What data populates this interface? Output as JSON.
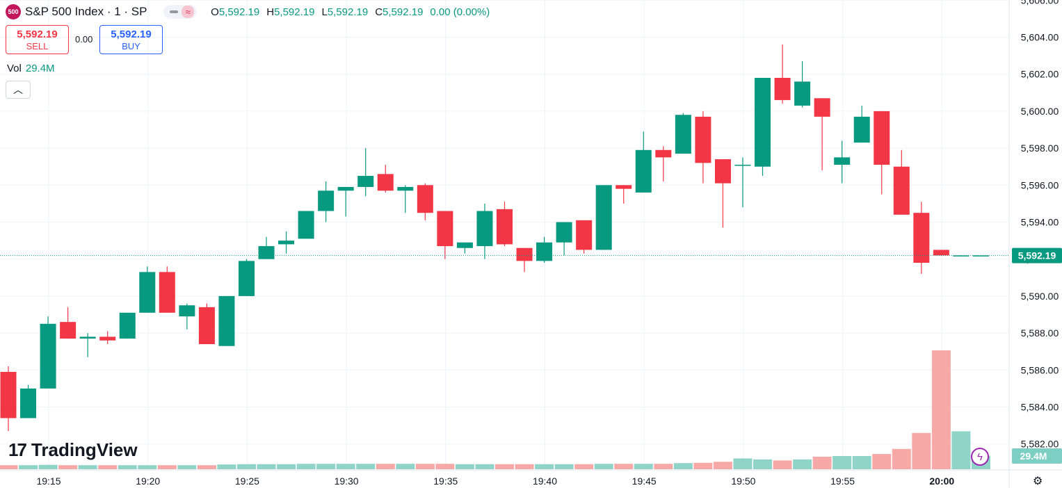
{
  "header": {
    "symbol_badge": "500",
    "title": "S&P 500 Index · 1 · SP",
    "ohlc": [
      {
        "key": "O",
        "value": "5,592.19"
      },
      {
        "key": "H",
        "value": "5,592.19"
      },
      {
        "key": "L",
        "value": "5,592.19"
      },
      {
        "key": "C",
        "value": "5,592.19"
      }
    ],
    "change": "0.00 (0.00%)"
  },
  "trade": {
    "sell_price": "5,592.19",
    "sell_label": "SELL",
    "spread": "0.00",
    "buy_price": "5,592.19",
    "buy_label": "BUY"
  },
  "volume_legend": {
    "label": "Vol",
    "value": "29.4M"
  },
  "collapse_icon": "chevron-up-icon",
  "logo_text": "TradingView",
  "colors": {
    "up": "#089981",
    "down": "#f23645",
    "vol_up": "#8fd3c9",
    "vol_down": "#f7a9a7",
    "price_tag": "#089981"
  },
  "chart_data": {
    "type": "candlestick",
    "x_ticks": [
      "19:15",
      "19:20",
      "19:25",
      "19:30",
      "19:35",
      "19:40",
      "19:45",
      "19:50",
      "19:55",
      "20:00"
    ],
    "y_ticks": [
      "5,582.00",
      "5,584.00",
      "5,586.00",
      "5,588.00",
      "5,590.00",
      "5,592.00",
      "5,594.00",
      "5,596.00",
      "5,598.00",
      "5,600.00",
      "5,602.00",
      "5,604.00",
      "5,606.00"
    ],
    "ylim": [
      5581,
      5606
    ],
    "last_price": 5592.19,
    "last_price_label": "5,592.19",
    "volume_label": "29.4M",
    "candles": [
      {
        "o": 5585.9,
        "h": 5586.2,
        "l": 5582.7,
        "c": 5583.4
      },
      {
        "o": 5583.4,
        "h": 5585.2,
        "l": 5583.4,
        "c": 5585.0
      },
      {
        "o": 5585.0,
        "h": 5588.9,
        "l": 5585.0,
        "c": 5588.5
      },
      {
        "o": 5588.6,
        "h": 5589.4,
        "l": 5587.7,
        "c": 5587.7
      },
      {
        "o": 5587.7,
        "h": 5588.0,
        "l": 5586.7,
        "c": 5587.8
      },
      {
        "o": 5587.8,
        "h": 5588.1,
        "l": 5587.4,
        "c": 5587.6
      },
      {
        "o": 5587.7,
        "h": 5589.1,
        "l": 5587.7,
        "c": 5589.1
      },
      {
        "o": 5589.1,
        "h": 5591.6,
        "l": 5589.1,
        "c": 5591.3
      },
      {
        "o": 5591.3,
        "h": 5591.6,
        "l": 5589.1,
        "c": 5589.1
      },
      {
        "o": 5588.9,
        "h": 5589.6,
        "l": 5588.2,
        "c": 5589.5
      },
      {
        "o": 5589.4,
        "h": 5589.6,
        "l": 5587.4,
        "c": 5587.4
      },
      {
        "o": 5587.3,
        "h": 5590.0,
        "l": 5587.3,
        "c": 5590.0
      },
      {
        "o": 5590.0,
        "h": 5592.0,
        "l": 5590.0,
        "c": 5591.9
      },
      {
        "o": 5592.0,
        "h": 5593.2,
        "l": 5592.0,
        "c": 5592.7
      },
      {
        "o": 5592.8,
        "h": 5593.5,
        "l": 5592.3,
        "c": 5593.0
      },
      {
        "o": 5593.1,
        "h": 5594.6,
        "l": 5593.1,
        "c": 5594.6
      },
      {
        "o": 5594.6,
        "h": 5596.2,
        "l": 5594.0,
        "c": 5595.7
      },
      {
        "o": 5595.7,
        "h": 5595.9,
        "l": 5594.3,
        "c": 5595.9
      },
      {
        "o": 5595.9,
        "h": 5598.0,
        "l": 5595.4,
        "c": 5596.5
      },
      {
        "o": 5596.6,
        "h": 5597.1,
        "l": 5595.6,
        "c": 5595.7
      },
      {
        "o": 5595.7,
        "h": 5596.0,
        "l": 5594.5,
        "c": 5595.9
      },
      {
        "o": 5596.0,
        "h": 5596.1,
        "l": 5594.1,
        "c": 5594.5
      },
      {
        "o": 5594.6,
        "h": 5594.6,
        "l": 5592.0,
        "c": 5592.7
      },
      {
        "o": 5592.6,
        "h": 5592.9,
        "l": 5592.3,
        "c": 5592.9
      },
      {
        "o": 5592.7,
        "h": 5595.0,
        "l": 5592.0,
        "c": 5594.6
      },
      {
        "o": 5594.7,
        "h": 5595.1,
        "l": 5592.7,
        "c": 5592.8
      },
      {
        "o": 5592.6,
        "h": 5592.6,
        "l": 5591.3,
        "c": 5591.9
      },
      {
        "o": 5591.9,
        "h": 5593.2,
        "l": 5591.8,
        "c": 5592.9
      },
      {
        "o": 5592.9,
        "h": 5594.0,
        "l": 5592.2,
        "c": 5594.0
      },
      {
        "o": 5594.1,
        "h": 5594.1,
        "l": 5592.3,
        "c": 5592.5
      },
      {
        "o": 5592.5,
        "h": 5596.0,
        "l": 5592.5,
        "c": 5596.0
      },
      {
        "o": 5596.0,
        "h": 5596.0,
        "l": 5595.0,
        "c": 5595.8
      },
      {
        "o": 5595.6,
        "h": 5598.9,
        "l": 5595.6,
        "c": 5597.9
      },
      {
        "o": 5597.9,
        "h": 5598.1,
        "l": 5596.2,
        "c": 5597.5
      },
      {
        "o": 5597.7,
        "h": 5599.9,
        "l": 5597.7,
        "c": 5599.8
      },
      {
        "o": 5599.7,
        "h": 5600.0,
        "l": 5596.1,
        "c": 5597.2
      },
      {
        "o": 5597.4,
        "h": 5597.4,
        "l": 5593.7,
        "c": 5596.1
      },
      {
        "o": 5597.1,
        "h": 5597.5,
        "l": 5594.8,
        "c": 5597.1
      },
      {
        "o": 5597.0,
        "h": 5601.8,
        "l": 5596.5,
        "c": 5601.8
      },
      {
        "o": 5601.8,
        "h": 5603.6,
        "l": 5600.4,
        "c": 5600.6
      },
      {
        "o": 5600.3,
        "h": 5602.7,
        "l": 5600.2,
        "c": 5601.6
      },
      {
        "o": 5600.7,
        "h": 5600.7,
        "l": 5596.8,
        "c": 5599.7
      },
      {
        "o": 5597.1,
        "h": 5598.4,
        "l": 5596.1,
        "c": 5597.5
      },
      {
        "o": 5598.3,
        "h": 5600.3,
        "l": 5598.3,
        "c": 5599.7
      },
      {
        "o": 5600.0,
        "h": 5600.0,
        "l": 5595.5,
        "c": 5597.1
      },
      {
        "o": 5597.0,
        "h": 5597.9,
        "l": 5594.4,
        "c": 5594.4
      },
      {
        "o": 5594.5,
        "h": 5595.1,
        "l": 5591.2,
        "c": 5591.8
      },
      {
        "o": 5592.5,
        "h": 5592.5,
        "l": 5592.2,
        "c": 5592.2
      },
      {
        "o": 5592.2,
        "h": 5592.2,
        "l": 5592.2,
        "c": 5592.2
      },
      {
        "o": 5592.2,
        "h": 5592.2,
        "l": 5592.2,
        "c": 5592.2
      }
    ],
    "volume": [
      1.2,
      1.2,
      1.3,
      1.2,
      1.2,
      1.2,
      1.2,
      1.2,
      1.2,
      1.2,
      1.2,
      1.4,
      1.5,
      1.5,
      1.5,
      1.6,
      1.6,
      1.6,
      1.6,
      1.6,
      1.6,
      1.6,
      1.6,
      1.5,
      1.5,
      1.5,
      1.5,
      1.5,
      1.5,
      1.5,
      1.6,
      1.6,
      1.6,
      1.6,
      1.8,
      1.9,
      2.2,
      3.2,
      2.9,
      2.6,
      2.9,
      3.7,
      3.9,
      3.9,
      4.5,
      6.0,
      10.7,
      35.1,
      11.2,
      4.0
    ]
  }
}
